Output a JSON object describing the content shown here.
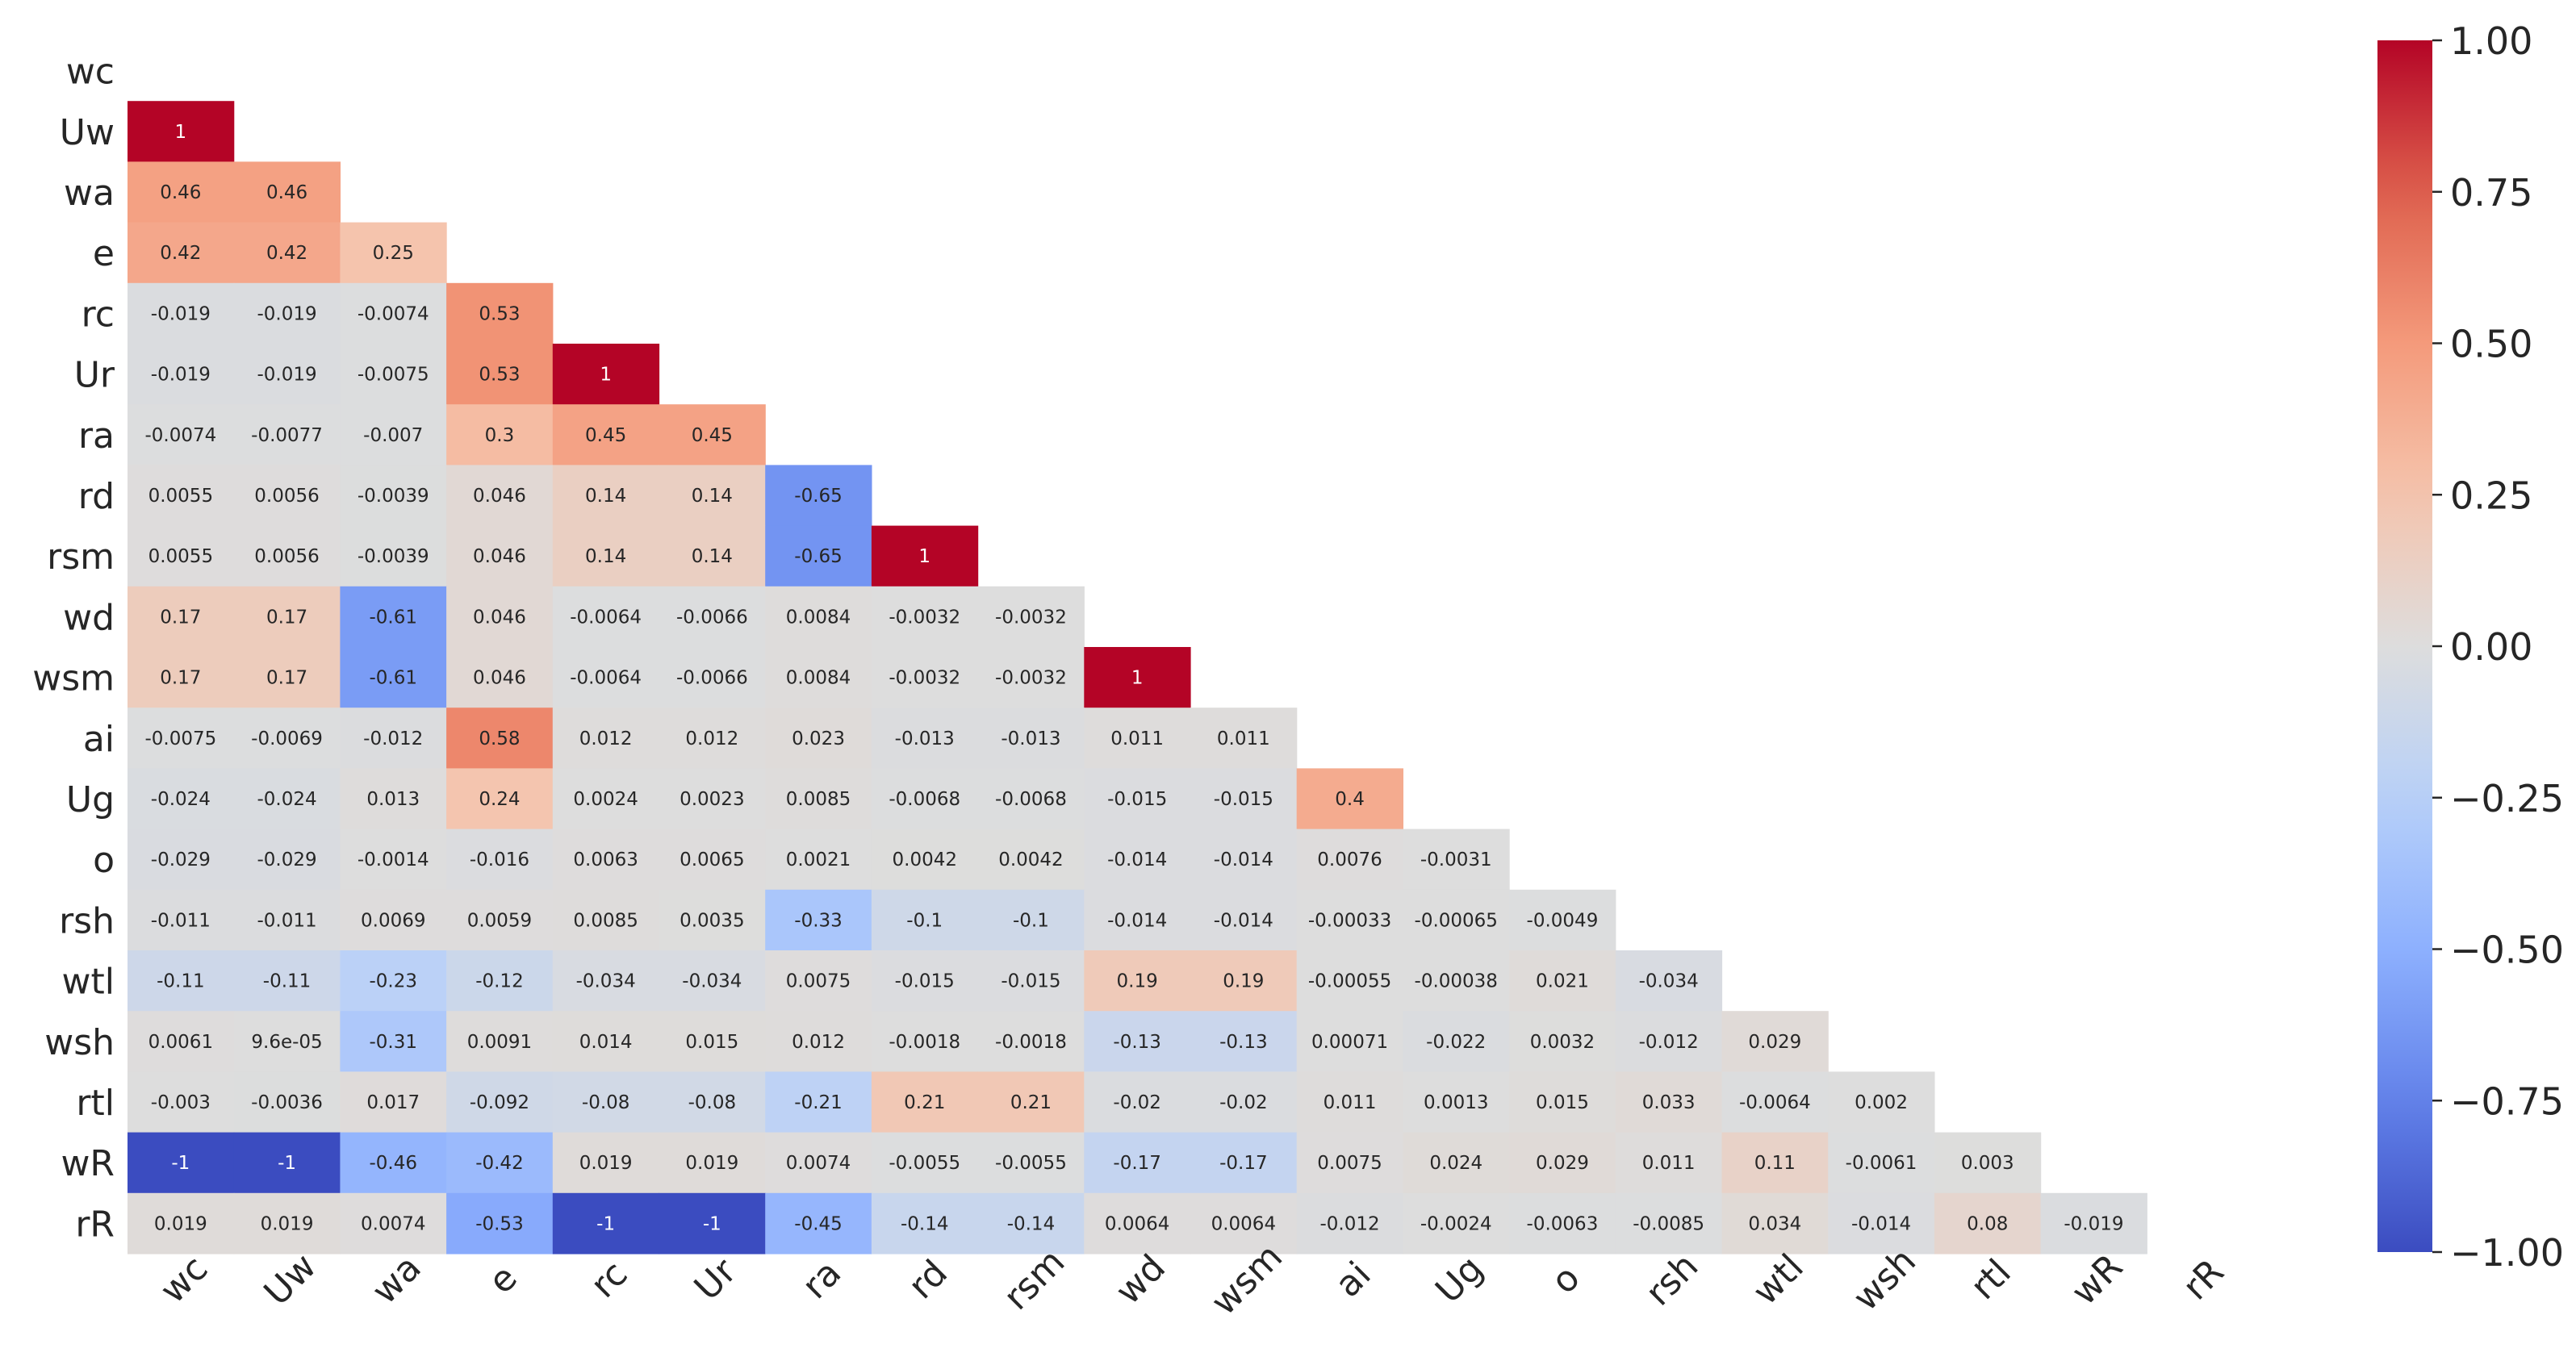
{
  "chart_data": {
    "type": "heatmap",
    "title": "",
    "xlabel": "",
    "ylabel": "",
    "mask": "upper-triangle-including-diagonal",
    "labels": [
      "wc",
      "Uw",
      "wa",
      "e",
      "rc",
      "Ur",
      "ra",
      "rd",
      "rsm",
      "wd",
      "wsm",
      "ai",
      "Ug",
      "o",
      "rsh",
      "wtl",
      "wsh",
      "rtl",
      "wR",
      "rR"
    ],
    "rows": [
      {
        "label": "wc",
        "values": []
      },
      {
        "label": "Uw",
        "values": [
          "1"
        ]
      },
      {
        "label": "wa",
        "values": [
          "0.46",
          "0.46"
        ]
      },
      {
        "label": "e",
        "values": [
          "0.42",
          "0.42",
          "0.25"
        ]
      },
      {
        "label": "rc",
        "values": [
          "-0.019",
          "-0.019",
          "-0.0074",
          "0.53"
        ]
      },
      {
        "label": "Ur",
        "values": [
          "-0.019",
          "-0.019",
          "-0.0075",
          "0.53",
          "1"
        ]
      },
      {
        "label": "ra",
        "values": [
          "-0.0074",
          "-0.0077",
          "-0.007",
          "0.3",
          "0.45",
          "0.45"
        ]
      },
      {
        "label": "rd",
        "values": [
          "0.0055",
          "0.0056",
          "-0.0039",
          "0.046",
          "0.14",
          "0.14",
          "-0.65"
        ]
      },
      {
        "label": "rsm",
        "values": [
          "0.0055",
          "0.0056",
          "-0.0039",
          "0.046",
          "0.14",
          "0.14",
          "-0.65",
          "1"
        ]
      },
      {
        "label": "wd",
        "values": [
          "0.17",
          "0.17",
          "-0.61",
          "0.046",
          "-0.0064",
          "-0.0066",
          "0.0084",
          "-0.0032",
          "-0.0032"
        ]
      },
      {
        "label": "wsm",
        "values": [
          "0.17",
          "0.17",
          "-0.61",
          "0.046",
          "-0.0064",
          "-0.0066",
          "0.0084",
          "-0.0032",
          "-0.0032",
          "1"
        ]
      },
      {
        "label": "ai",
        "values": [
          "-0.0075",
          "-0.0069",
          "-0.012",
          "0.58",
          "0.012",
          "0.012",
          "0.023",
          "-0.013",
          "-0.013",
          "0.011",
          "0.011"
        ]
      },
      {
        "label": "Ug",
        "values": [
          "-0.024",
          "-0.024",
          "0.013",
          "0.24",
          "0.0024",
          "0.0023",
          "0.0085",
          "-0.0068",
          "-0.0068",
          "-0.015",
          "-0.015",
          "0.4"
        ]
      },
      {
        "label": "o",
        "values": [
          "-0.029",
          "-0.029",
          "-0.0014",
          "-0.016",
          "0.0063",
          "0.0065",
          "0.0021",
          "0.0042",
          "0.0042",
          "-0.014",
          "-0.014",
          "0.0076",
          "-0.0031"
        ]
      },
      {
        "label": "rsh",
        "values": [
          "-0.011",
          "-0.011",
          "0.0069",
          "0.0059",
          "0.0085",
          "0.0035",
          "-0.33",
          "-0.1",
          "-0.1",
          "-0.014",
          "-0.014",
          "-0.00033",
          "-0.00065",
          "-0.0049"
        ]
      },
      {
        "label": "wtl",
        "values": [
          "-0.11",
          "-0.11",
          "-0.23",
          "-0.12",
          "-0.034",
          "-0.034",
          "0.0075",
          "-0.015",
          "-0.015",
          "0.19",
          "0.19",
          "-0.00055",
          "-0.00038",
          "0.021",
          "-0.034"
        ]
      },
      {
        "label": "wsh",
        "values": [
          "0.0061",
          "9.6e-05",
          "-0.31",
          "0.0091",
          "0.014",
          "0.015",
          "0.012",
          "-0.0018",
          "-0.0018",
          "-0.13",
          "-0.13",
          "0.00071",
          "-0.022",
          "0.0032",
          "-0.012",
          "0.029"
        ]
      },
      {
        "label": "rtl",
        "values": [
          "-0.003",
          "-0.0036",
          "0.017",
          "-0.092",
          "-0.08",
          "-0.08",
          "-0.21",
          "0.21",
          "0.21",
          "-0.02",
          "-0.02",
          "0.011",
          "0.0013",
          "0.015",
          "0.033",
          "-0.0064",
          "0.002"
        ]
      },
      {
        "label": "wR",
        "values": [
          "-1",
          "-1",
          "-0.46",
          "-0.42",
          "0.019",
          "0.019",
          "0.0074",
          "-0.0055",
          "-0.0055",
          "-0.17",
          "-0.17",
          "0.0075",
          "0.024",
          "0.029",
          "0.011",
          "0.11",
          "-0.0061",
          "0.003"
        ]
      },
      {
        "label": "rR",
        "values": [
          "0.019",
          "0.019",
          "0.0074",
          "-0.53",
          "-1",
          "-1",
          "-0.45",
          "-0.14",
          "-0.14",
          "0.0064",
          "0.0064",
          "-0.012",
          "-0.0024",
          "-0.0063",
          "-0.0085",
          "0.034",
          "-0.014",
          "0.08",
          "-0.019"
        ]
      }
    ],
    "colorbar": {
      "cmap": "coolwarm",
      "vmin": -1.0,
      "vmax": 1.0,
      "ticks": [
        1.0,
        0.75,
        0.5,
        0.25,
        0.0,
        -0.25,
        -0.5,
        -0.75,
        -1.0
      ],
      "tick_labels": [
        "1.00",
        "0.75",
        "0.50",
        "0.25",
        "0.00",
        "−0.25",
        "−0.50",
        "−0.75",
        "−1.00"
      ]
    }
  }
}
